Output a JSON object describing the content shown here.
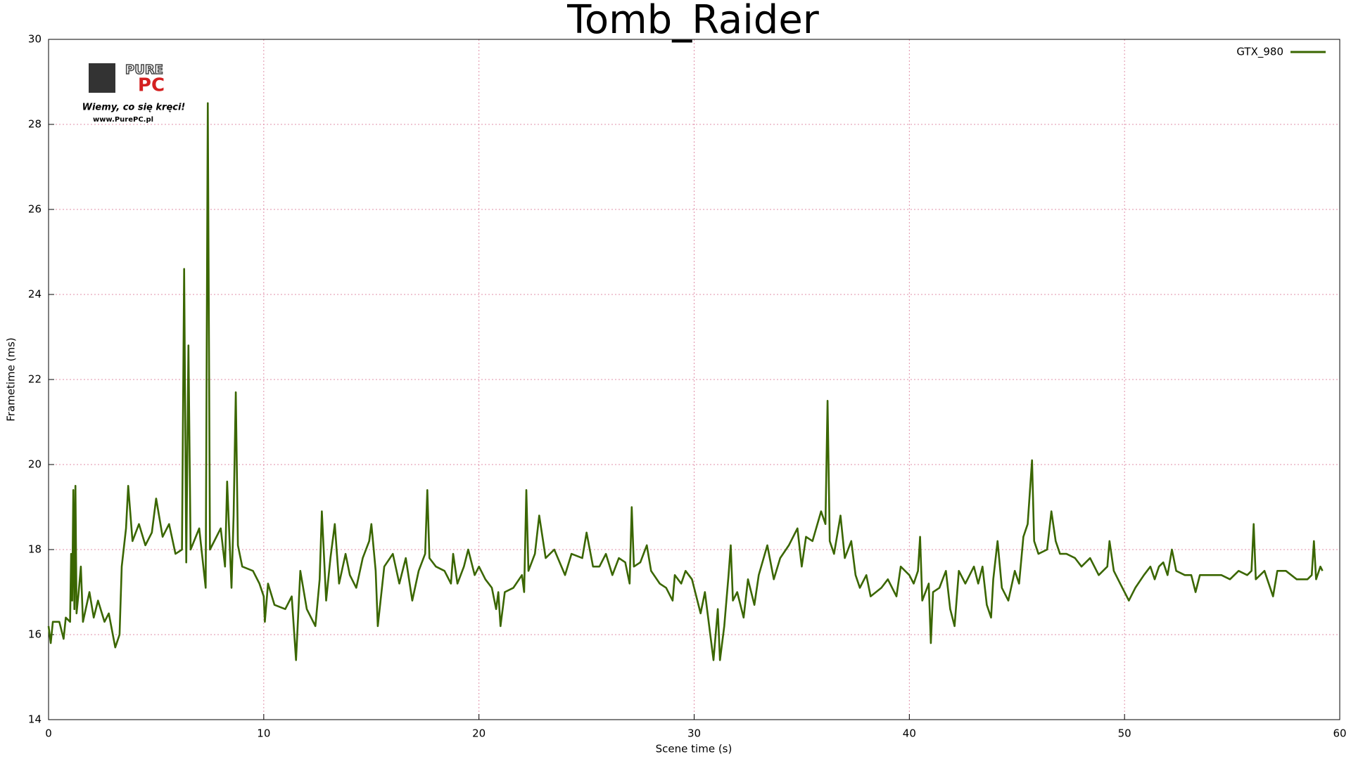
{
  "chart_data": {
    "type": "line",
    "title": "Tomb_Raider",
    "x_label": "Scene time (s)",
    "y_label": "Frametime (ms)",
    "xlim": [
      0,
      60
    ],
    "xticks": [
      0,
      10,
      20,
      30,
      40,
      50,
      60
    ],
    "ylim": [
      14,
      30
    ],
    "yticks": [
      14,
      16,
      18,
      20,
      22,
      24,
      26,
      28,
      30
    ],
    "grid": true,
    "legend": "upper right",
    "x": [
      0,
      0.1,
      0.2,
      0.5,
      0.7,
      0.8,
      1,
      1.05,
      1.1,
      1.15,
      1.2,
      1.25,
      1.3,
      1.4,
      1.5,
      1.6,
      1.9,
      2.1,
      2.3,
      2.6,
      2.8,
      3.1,
      3.3,
      3.4,
      3.6,
      3.7,
      3.9,
      4.2,
      4.5,
      4.8,
      5,
      5.3,
      5.6,
      5.9,
      6.2,
      6.3,
      6.4,
      6.5,
      6.6,
      7,
      7.3,
      7.4,
      7.5,
      8,
      8.2,
      8.3,
      8.5,
      8.6,
      8.7,
      8.8,
      9,
      9.5,
      9.8,
      10,
      10.05,
      10.2,
      10.5,
      11,
      11.3,
      11.5,
      11.7,
      12,
      12.4,
      12.6,
      12.7,
      12.9,
      13.1,
      13.3,
      13.5,
      13.8,
      14,
      14.3,
      14.6,
      14.9,
      15,
      15.2,
      15.3,
      15.6,
      16,
      16.3,
      16.6,
      16.9,
      17.2,
      17.5,
      17.6,
      17.7,
      18,
      18.4,
      18.7,
      18.8,
      19,
      19.3,
      19.5,
      19.8,
      20,
      20.3,
      20.6,
      20.8,
      20.9,
      21,
      21.2,
      21.6,
      22,
      22.1,
      22.2,
      22.3,
      22.6,
      22.8,
      23.1,
      23.5,
      24,
      24.3,
      24.8,
      25,
      25.3,
      25.6,
      25.9,
      26.2,
      26.5,
      26.8,
      27,
      27.1,
      27.2,
      27.5,
      27.8,
      28,
      28.4,
      28.7,
      29,
      29.1,
      29.4,
      29.6,
      29.9,
      30.3,
      30.5,
      30.7,
      30.9,
      31.1,
      31.2,
      31.4,
      31.6,
      31.7,
      31.8,
      32,
      32.3,
      32.5,
      32.8,
      33,
      33.4,
      33.7,
      34,
      34.4,
      34.8,
      35,
      35.2,
      35.5,
      35.9,
      36.1,
      36.2,
      36.3,
      36.5,
      36.8,
      37,
      37.3,
      37.5,
      37.7,
      38,
      38.2,
      38.7,
      39,
      39.4,
      39.6,
      40,
      40.2,
      40.4,
      40.5,
      40.6,
      40.9,
      41,
      41.1,
      41.4,
      41.7,
      41.9,
      42.1,
      42.3,
      42.6,
      43,
      43.2,
      43.4,
      43.6,
      43.8,
      43.9,
      44.1,
      44.3,
      44.6,
      44.9,
      45.1,
      45.3,
      45.5,
      45.7,
      45.8,
      46,
      46.4,
      46.6,
      46.8,
      47,
      47.3,
      47.7,
      48,
      48.4,
      48.8,
      49.2,
      49.3,
      49.5,
      49.8,
      50,
      50.2,
      50.5,
      50.9,
      51.2,
      51.4,
      51.6,
      51.8,
      52,
      52.2,
      52.4,
      52.8,
      53.1,
      53.3,
      53.5,
      54,
      54.5,
      54.9,
      55.3,
      55.7,
      55.9,
      56,
      56.1,
      56.5,
      56.9,
      57.1,
      57.5,
      58,
      58.5,
      58.7,
      58.8,
      58.9,
      59.1,
      59.2
    ],
    "series": [
      {
        "name": "GTX_980",
        "color": "#3a6600",
        "values": [
          16.2,
          15.8,
          16.3,
          16.3,
          15.9,
          16.4,
          16.3,
          17.9,
          16.8,
          19.4,
          16.6,
          19.5,
          16.5,
          17.0,
          17.6,
          16.3,
          17.0,
          16.4,
          16.8,
          16.3,
          16.5,
          15.7,
          16.0,
          17.6,
          18.5,
          19.5,
          18.2,
          18.6,
          18.1,
          18.4,
          19.2,
          18.3,
          18.6,
          17.9,
          18.0,
          24.6,
          17.7,
          22.8,
          18.0,
          18.5,
          17.1,
          28.5,
          18.0,
          18.5,
          17.6,
          19.6,
          17.1,
          18.8,
          21.7,
          18.1,
          17.6,
          17.5,
          17.2,
          16.9,
          16.3,
          17.2,
          16.7,
          16.6,
          16.9,
          15.4,
          17.5,
          16.6,
          16.2,
          17.3,
          18.9,
          16.8,
          17.8,
          18.6,
          17.2,
          17.9,
          17.4,
          17.1,
          17.8,
          18.2,
          18.6,
          17.5,
          16.2,
          17.6,
          17.9,
          17.2,
          17.8,
          16.8,
          17.5,
          17.9,
          19.4,
          17.8,
          17.6,
          17.5,
          17.2,
          17.9,
          17.2,
          17.6,
          18.0,
          17.4,
          17.6,
          17.3,
          17.1,
          16.6,
          17.0,
          16.2,
          17.0,
          17.1,
          17.4,
          17.0,
          19.4,
          17.5,
          17.9,
          18.8,
          17.8,
          18.0,
          17.4,
          17.9,
          17.8,
          18.4,
          17.6,
          17.6,
          17.9,
          17.4,
          17.8,
          17.7,
          17.2,
          19.0,
          17.6,
          17.7,
          18.1,
          17.5,
          17.2,
          17.1,
          16.8,
          17.4,
          17.2,
          17.5,
          17.3,
          16.5,
          17.0,
          16.2,
          15.4,
          16.6,
          15.4,
          16.2,
          17.4,
          18.1,
          16.8,
          17.0,
          16.4,
          17.3,
          16.7,
          17.4,
          18.1,
          17.3,
          17.8,
          18.1,
          18.5,
          17.6,
          18.3,
          18.2,
          18.9,
          18.6,
          21.5,
          18.2,
          17.9,
          18.8,
          17.8,
          18.2,
          17.4,
          17.1,
          17.4,
          16.9,
          17.1,
          17.3,
          16.9,
          17.6,
          17.4,
          17.2,
          17.5,
          18.3,
          16.8,
          17.2,
          15.8,
          17.0,
          17.1,
          17.5,
          16.6,
          16.2,
          17.5,
          17.2,
          17.6,
          17.2,
          17.6,
          16.7,
          16.4,
          17.3,
          18.2,
          17.1,
          16.8,
          17.5,
          17.2,
          18.3,
          18.6,
          20.1,
          18.2,
          17.9,
          18.0,
          18.9,
          18.2,
          17.9,
          17.9,
          17.8,
          17.6,
          17.8,
          17.4,
          17.6,
          18.2,
          17.5,
          17.2,
          17.0,
          16.8,
          17.1,
          17.4,
          17.6,
          17.3,
          17.6,
          17.7,
          17.4,
          18.0,
          17.5,
          17.4,
          17.4,
          17.0,
          17.4,
          17.4,
          17.4,
          17.3,
          17.5,
          17.4,
          17.5,
          18.6,
          17.3,
          17.5,
          16.9,
          17.5,
          17.5,
          17.3,
          17.3,
          17.4,
          18.2,
          17.3,
          17.6,
          17.5
        ]
      }
    ]
  },
  "logo": {
    "brand_top": "PURE",
    "brand_bottom": "PC",
    "slogan": "Wiemy, co się kręci!",
    "url": "www.PurePC.pl"
  }
}
